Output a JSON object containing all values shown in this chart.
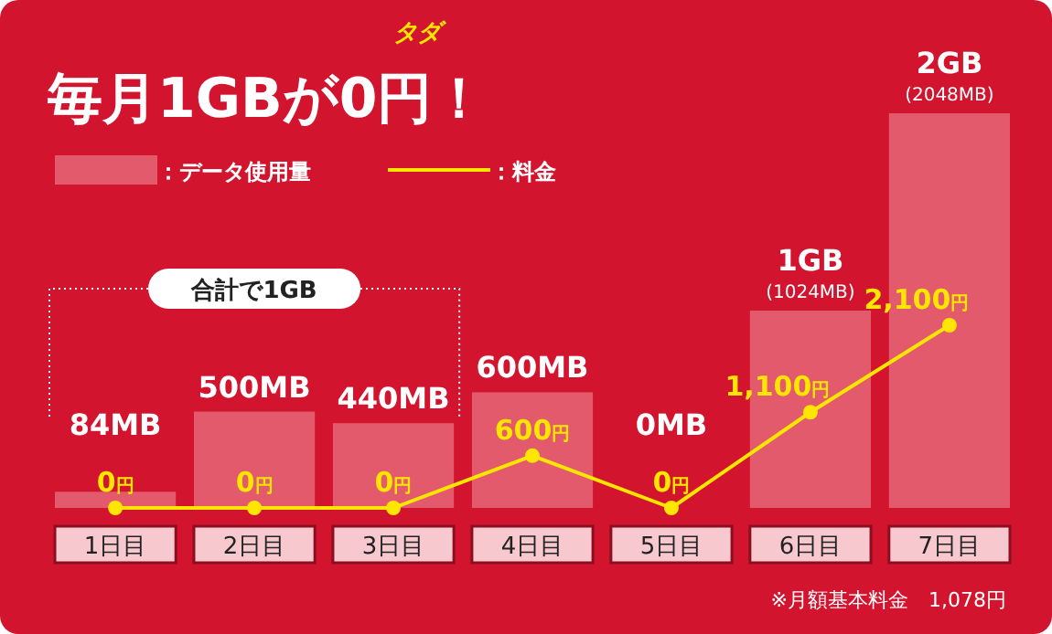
{
  "chart_data": {
    "type": "bar",
    "title": "毎月1GBが0円！",
    "annotations": [
      "タダ",
      "合計で1GB",
      "※月額基本料金　1,078円"
    ],
    "categories": [
      "1日目",
      "2日目",
      "3日目",
      "4日目",
      "5日目",
      "6日目",
      "7日目"
    ],
    "legend": "top left",
    "series": [
      {
        "name": "：データ使用量",
        "color": "#e25a6c",
        "values": [
          84,
          500,
          440,
          600,
          0,
          1024,
          2048
        ],
        "value_labels": [
          "84MB",
          "500MB",
          "440MB",
          "600MB",
          "0MB",
          "1GB\n(1024MB)",
          "2GB\n(2048MB)"
        ]
      },
      {
        "name": "：料金",
        "type": "line",
        "axis": "y2",
        "color": "#ffe600",
        "marker": "circle",
        "values": [
          0,
          0,
          0,
          600,
          0,
          1100,
          2100
        ],
        "value_labels": [
          "0円",
          "0円",
          "0円",
          "600円",
          "0円",
          "1,100円",
          "2,100円"
        ]
      }
    ]
  }
}
